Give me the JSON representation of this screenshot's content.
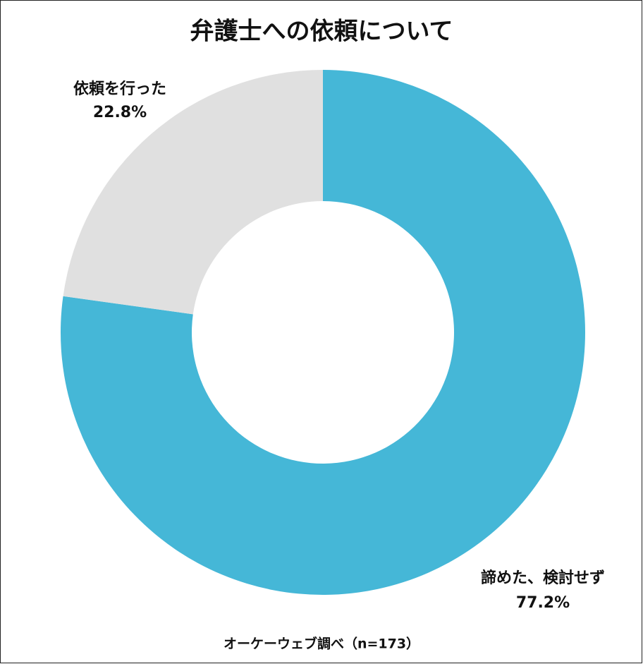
{
  "chart_data": {
    "type": "donut",
    "title": "弁護士への依頼について",
    "categories": [
      "諦めた、検討せず",
      "依頼を行った"
    ],
    "values": [
      77.2,
      22.8
    ],
    "value_labels": [
      "77.2%",
      "22.8%"
    ],
    "colors": [
      "#45b7d7",
      "#e0e0e0"
    ],
    "source": "オーケーウェブ調べ（n=173）"
  }
}
